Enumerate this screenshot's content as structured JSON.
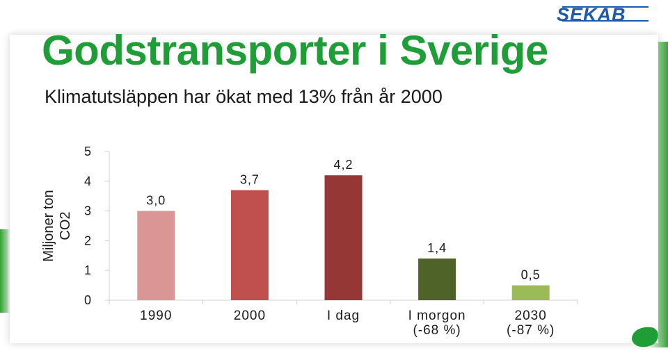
{
  "header": {
    "title": "Godstransporter i Sverige",
    "subtitle": "Klimatutsläppen har ökat med 13% från år 2000",
    "logo_text": "SEKAB"
  },
  "colors": {
    "title": "#1f9e38",
    "logo": "#1d5aa8"
  },
  "chart_data": {
    "type": "bar",
    "title": "",
    "ylabel_lines": [
      "Miljoner ton",
      "CO2"
    ],
    "xlabel": "",
    "ylim": [
      0,
      5
    ],
    "yticks": [
      0,
      1,
      2,
      3,
      4,
      5
    ],
    "grid": false,
    "categories": [
      [
        "1990"
      ],
      [
        "2000"
      ],
      [
        "I dag"
      ],
      [
        "I morgon",
        "(-68 %)"
      ],
      [
        "2030",
        "(-87 %)"
      ]
    ],
    "values": [
      3.0,
      3.7,
      4.2,
      1.4,
      0.5
    ],
    "value_labels": [
      "3,0",
      "3,7",
      "4,2",
      "1,4",
      "0,5"
    ],
    "bar_colors": [
      "#d99694",
      "#c0504d",
      "#953735",
      "#4f6228",
      "#9bbb59"
    ]
  }
}
